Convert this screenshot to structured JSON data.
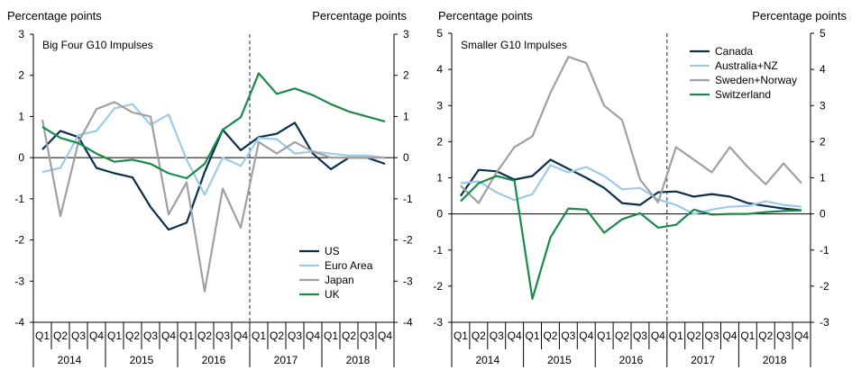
{
  "chart_data": [
    {
      "type": "line",
      "title": "Big Four G10 Impulses",
      "ylabel_left": "Percentage points",
      "ylabel_right": "Percentage points",
      "ylim": [
        -4,
        3
      ],
      "yticks": [
        "-4",
        "-3",
        "-2",
        "-1",
        "0",
        "1",
        "2",
        "3"
      ],
      "forecast_divider_after_index": 12,
      "quarters": [
        "Q1",
        "Q2",
        "Q3",
        "Q4",
        "Q1",
        "Q2",
        "Q3",
        "Q4",
        "Q1",
        "Q2",
        "Q3",
        "Q4",
        "Q1",
        "Q2",
        "Q3",
        "Q4",
        "Q1",
        "Q2",
        "Q3",
        "Q4"
      ],
      "years": [
        "2014",
        "2015",
        "2016",
        "2017",
        "2018"
      ],
      "legend": {
        "position": "bottom-right"
      },
      "series": [
        {
          "name": "US",
          "color": "#0b2f4f",
          "values": [
            0.2,
            0.65,
            0.5,
            -0.25,
            -0.38,
            -0.48,
            -1.2,
            -1.75,
            -1.58,
            -0.35,
            0.68,
            0.18,
            0.5,
            0.58,
            0.85,
            0.1,
            -0.28,
            0.0,
            0.0,
            -0.15
          ]
        },
        {
          "name": "Euro Area",
          "color": "#9ccbea",
          "values": [
            -0.35,
            -0.25,
            0.55,
            0.65,
            1.2,
            1.3,
            0.8,
            1.05,
            -0.05,
            -0.9,
            0.0,
            -0.2,
            0.48,
            0.45,
            0.1,
            0.15,
            0.1,
            0.05,
            0.05,
            0.0
          ]
        },
        {
          "name": "Japan",
          "color": "#a0a0a0",
          "values": [
            0.92,
            -1.42,
            0.38,
            1.18,
            1.35,
            1.1,
            1.0,
            -1.38,
            -0.6,
            -3.25,
            -0.75,
            -1.7,
            0.38,
            0.1,
            0.38,
            0.15,
            0.0,
            0.0,
            0.0,
            0.0
          ]
        },
        {
          "name": "UK",
          "color": "#1a8a4a",
          "values": [
            0.75,
            0.48,
            0.35,
            0.1,
            -0.1,
            -0.05,
            -0.15,
            -0.38,
            -0.5,
            -0.15,
            0.68,
            0.98,
            2.05,
            1.55,
            1.68,
            1.52,
            1.3,
            1.12,
            1.0,
            0.88
          ]
        }
      ]
    },
    {
      "type": "line",
      "title": "Smaller G10 Impulses",
      "ylabel_left": "Percentage points",
      "ylabel_right": "Percentage points",
      "ylim": [
        -3,
        5
      ],
      "yticks": [
        "-3",
        "-2",
        "-1",
        "0",
        "1",
        "2",
        "3",
        "4",
        "5"
      ],
      "forecast_divider_after_index": 12,
      "quarters": [
        "Q1",
        "Q2",
        "Q3",
        "Q4",
        "Q1",
        "Q2",
        "Q3",
        "Q4",
        "Q1",
        "Q2",
        "Q3",
        "Q4",
        "Q1",
        "Q2",
        "Q3",
        "Q4",
        "Q1",
        "Q2",
        "Q3",
        "Q4"
      ],
      "years": [
        "2014",
        "2015",
        "2016",
        "2017",
        "2018"
      ],
      "legend": {
        "position": "top-right"
      },
      "series": [
        {
          "name": "Canada",
          "color": "#0b2f4f",
          "values": [
            0.5,
            1.22,
            1.18,
            0.95,
            1.05,
            1.5,
            1.25,
            1.0,
            0.72,
            0.3,
            0.25,
            0.6,
            0.62,
            0.48,
            0.55,
            0.48,
            0.3,
            0.22,
            0.15,
            0.1
          ]
        },
        {
          "name": "Australia+NZ",
          "color": "#9ccbea",
          "values": [
            0.85,
            0.9,
            0.6,
            0.38,
            0.55,
            1.35,
            1.15,
            1.3,
            1.05,
            0.68,
            0.72,
            0.4,
            0.25,
            0.0,
            0.12,
            0.2,
            0.22,
            0.35,
            0.25,
            0.2
          ]
        },
        {
          "name": "Sweden+Norway",
          "color": "#a0a0a0",
          "values": [
            0.78,
            0.3,
            1.15,
            1.85,
            2.15,
            3.35,
            4.35,
            4.18,
            3.0,
            2.6,
            0.95,
            0.32,
            1.85,
            1.5,
            1.15,
            1.85,
            1.3,
            0.82,
            1.4,
            0.85
          ]
        },
        {
          "name": "Switzerland",
          "color": "#1a8a4a",
          "values": [
            0.35,
            0.85,
            1.05,
            0.92,
            -2.35,
            -0.65,
            0.15,
            0.12,
            -0.52,
            -0.15,
            0.02,
            -0.38,
            -0.3,
            0.12,
            -0.02,
            0.0,
            0.0,
            0.05,
            0.08,
            0.1
          ]
        }
      ]
    }
  ]
}
